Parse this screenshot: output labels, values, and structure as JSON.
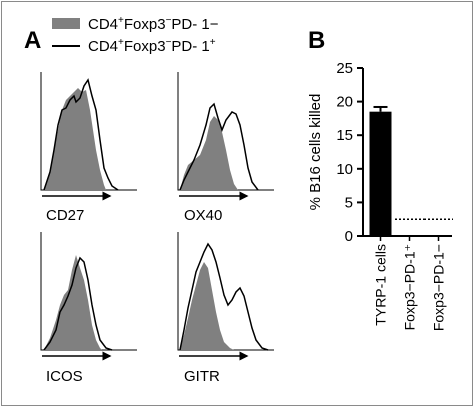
{
  "panel_a": {
    "letter": "A",
    "legend": [
      {
        "base": "CD4",
        "sup1": "+",
        "mid": "Foxp3",
        "sup2": "−",
        "tail": "PD- 1−",
        "style": "filled-gray"
      },
      {
        "base": "CD4",
        "sup1": "+",
        "mid": "Foxp3",
        "sup2": "−",
        "tail": "PD- 1",
        "sup3": "+",
        "style": "black-line"
      }
    ],
    "histograms": [
      {
        "marker": "CD27"
      },
      {
        "marker": "OX40"
      },
      {
        "marker": "ICOS"
      },
      {
        "marker": "GITR"
      }
    ]
  },
  "panel_b": {
    "letter": "B",
    "chart_data": {
      "type": "bar",
      "ylabel": "% B16 cells killed",
      "ylim": [
        0,
        25
      ],
      "yticks": [
        0,
        5,
        10,
        15,
        20,
        25
      ],
      "categories": [
        "TYRP-1 cells",
        "Foxp3−PD-1⁺",
        "Foxp3−PD-1−"
      ],
      "values": [
        18.5,
        2.5,
        2.5
      ],
      "error": [
        0.7,
        0,
        0
      ],
      "styles": [
        "bar-black",
        "dotted-line",
        "dotted-line"
      ],
      "colors": {
        "bar": "#000000",
        "dotted": "#000000"
      }
    }
  },
  "colors": {
    "fill_gray": "#808080",
    "line_black": "#000000",
    "border": "#8a8a8a"
  }
}
